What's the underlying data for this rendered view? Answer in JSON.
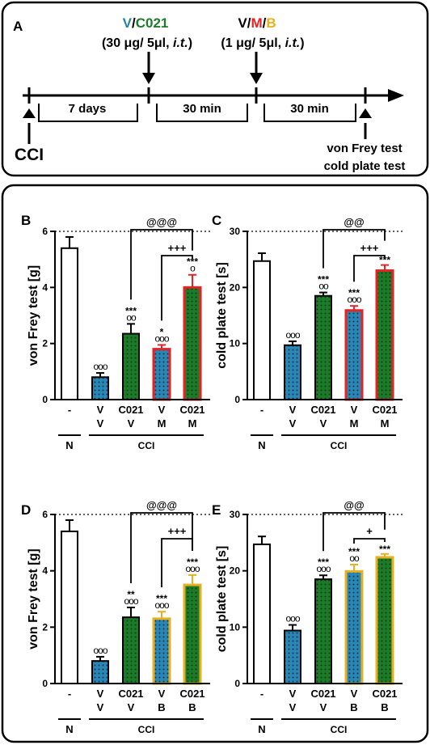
{
  "timeline": {
    "panel_label": "A",
    "first_injection": {
      "v": "V",
      "slash": "/",
      "c": "C021",
      "dose": "(30 μg/ 5μl, ",
      "route": "i.t.",
      "close": ")"
    },
    "second_injection": {
      "v": "V",
      "slash1": "/",
      "m": "M",
      "slash2": "/",
      "b": "B",
      "dose": "(1 μg/ 5μl, ",
      "route": "i.t.",
      "close": ")"
    },
    "interval_1": "7 days",
    "interval_2": "30 min",
    "interval_3": "30 min",
    "start_label": "CCI",
    "test_label_1": "von Frey test",
    "test_label_2": "cold plate test",
    "colors": {
      "v": "#2a7fa8",
      "c021": "#1f7a2a",
      "m": "#e82222",
      "b": "#e8b020"
    }
  },
  "chart_data": [
    {
      "panel": "B",
      "type": "bar",
      "ylabel": "von Frey test [g]",
      "ylim": [
        0,
        6
      ],
      "yticks": [
        "0",
        "2",
        "4",
        "6"
      ],
      "dotted_ref": 6,
      "categories": [
        [
          "-"
        ],
        [
          "V",
          "V"
        ],
        [
          "C021",
          "V"
        ],
        [
          "V",
          "M"
        ],
        [
          "C021",
          "M"
        ]
      ],
      "values": [
        5.4,
        0.8,
        2.35,
        1.8,
        4.0
      ],
      "errors": [
        0.4,
        0.15,
        0.35,
        0.15,
        0.45
      ],
      "fills": [
        "white",
        "blue",
        "green",
        "blue",
        "green"
      ],
      "borders": [
        "black",
        "black",
        "black",
        "red",
        "red"
      ],
      "sig_stars": [
        "",
        "",
        "***",
        "*",
        "***"
      ],
      "sig_circles": [
        "",
        "ooo",
        "oo",
        "ooo",
        "o"
      ],
      "group_n": "N",
      "group_cci": "CCI",
      "bracket_outer": {
        "label": "@@@",
        "from": 2,
        "to": 4
      },
      "bracket_inner": {
        "label": "+++",
        "from": 3,
        "to": 4
      }
    },
    {
      "panel": "C",
      "type": "bar",
      "ylabel": "cold plate test [s]",
      "ylim": [
        0,
        30
      ],
      "yticks": [
        "0",
        "10",
        "20",
        "30"
      ],
      "dotted_ref": 30,
      "categories": [
        [
          "-"
        ],
        [
          "V",
          "V"
        ],
        [
          "C021",
          "V"
        ],
        [
          "V",
          "M"
        ],
        [
          "C021",
          "M"
        ]
      ],
      "values": [
        24.7,
        9.7,
        18.5,
        15.9,
        23.0
      ],
      "errors": [
        1.4,
        0.7,
        0.6,
        0.8,
        1.0
      ],
      "fills": [
        "white",
        "blue",
        "green",
        "blue",
        "green"
      ],
      "borders": [
        "black",
        "black",
        "black",
        "red",
        "red"
      ],
      "sig_stars": [
        "",
        "",
        "***",
        "***",
        "***"
      ],
      "sig_circles": [
        "",
        "ooo",
        "oo",
        "ooo",
        ""
      ],
      "group_n": "N",
      "group_cci": "CCI",
      "bracket_outer": {
        "label": "@@",
        "from": 2,
        "to": 4
      },
      "bracket_inner": {
        "label": "+++",
        "from": 3,
        "to": 4
      }
    },
    {
      "panel": "D",
      "type": "bar",
      "ylabel": "von Frey test [g]",
      "ylim": [
        0,
        6
      ],
      "yticks": [
        "0",
        "2",
        "4",
        "6"
      ],
      "dotted_ref": 6,
      "categories": [
        [
          "-"
        ],
        [
          "V",
          "V"
        ],
        [
          "C021",
          "V"
        ],
        [
          "V",
          "B"
        ],
        [
          "C021",
          "B"
        ]
      ],
      "values": [
        5.4,
        0.8,
        2.35,
        2.3,
        3.5
      ],
      "errors": [
        0.4,
        0.15,
        0.35,
        0.25,
        0.35
      ],
      "fills": [
        "white",
        "blue",
        "green",
        "blue",
        "green"
      ],
      "borders": [
        "black",
        "black",
        "black",
        "gold",
        "gold"
      ],
      "sig_stars": [
        "",
        "",
        "**",
        "***",
        "***"
      ],
      "sig_circles": [
        "",
        "ooo",
        "ooo",
        "ooo",
        "ooo"
      ],
      "group_n": "N",
      "group_cci": "CCI",
      "bracket_outer": {
        "label": "@@@",
        "from": 2,
        "to": 4
      },
      "bracket_inner": {
        "label": "+++",
        "from": 3,
        "to": 4
      }
    },
    {
      "panel": "E",
      "type": "bar",
      "ylabel": "cold plate test [s]",
      "ylim": [
        0,
        30
      ],
      "yticks": [
        "0",
        "10",
        "20",
        "30"
      ],
      "dotted_ref": 30,
      "categories": [
        [
          "-"
        ],
        [
          "V",
          "V"
        ],
        [
          "C021",
          "V"
        ],
        [
          "V",
          "B"
        ],
        [
          "C021",
          "B"
        ]
      ],
      "values": [
        24.7,
        9.4,
        18.5,
        19.9,
        22.4
      ],
      "errors": [
        1.4,
        1.0,
        0.7,
        1.2,
        0.6
      ],
      "fills": [
        "white",
        "blue",
        "green",
        "blue",
        "green"
      ],
      "borders": [
        "black",
        "black",
        "black",
        "gold",
        "gold"
      ],
      "sig_stars": [
        "",
        "",
        "***",
        "***",
        "***"
      ],
      "sig_circles": [
        "",
        "ooo",
        "ooo",
        "oo",
        ""
      ],
      "group_n": "N",
      "group_cci": "CCI",
      "bracket_outer": {
        "label": "@@",
        "from": 2,
        "to": 4
      },
      "bracket_inner": {
        "label": "+",
        "from": 3,
        "to": 4
      }
    }
  ]
}
